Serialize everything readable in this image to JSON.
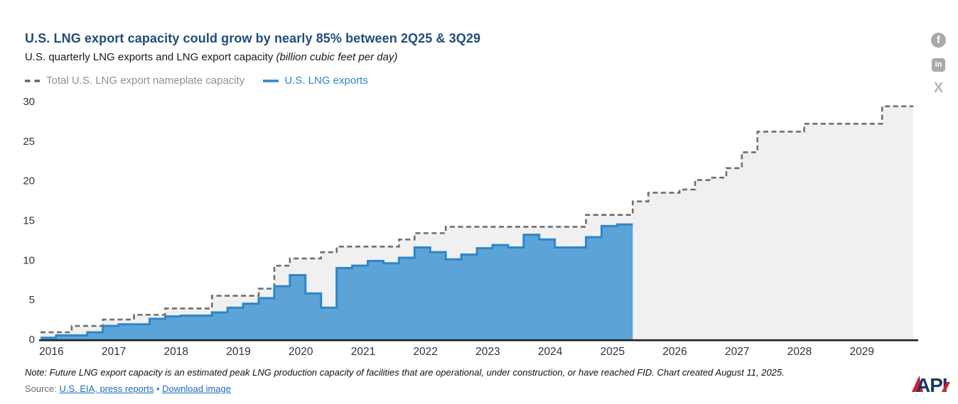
{
  "header": {
    "title": "U.S. LNG export capacity could grow by nearly 85% between 2Q25 & 3Q29",
    "subtitle_plain": "U.S. quarterly LNG exports and LNG export capacity ",
    "subtitle_italic": "(billion cubic feet per day)"
  },
  "legend": {
    "capacity_label": "Total U.S. LNG export nameplate capacity",
    "exports_label": "U.S. LNG exports"
  },
  "social": {
    "facebook": "f",
    "linkedin": "in",
    "x": "X"
  },
  "chart_data": {
    "type": "area",
    "subtype": "quarterly step areas",
    "unit": "billion cubic feet per day",
    "x_start": "2016Q1",
    "x_tick_labels": [
      "2016",
      "2017",
      "2018",
      "2019",
      "2020",
      "2021",
      "2022",
      "2023",
      "2024",
      "2025",
      "2026",
      "2027",
      "2028",
      "2029"
    ],
    "y_ticks": [
      0,
      5,
      10,
      15,
      20,
      25,
      30
    ],
    "ylim": [
      0,
      30
    ],
    "grid": "off",
    "legend_position": "top-left",
    "series": [
      {
        "name": "Total U.S. LNG export nameplate capacity",
        "style": "dashed-step-area",
        "line_color": "#6f6f6f",
        "fill_color": "#f0f0f0",
        "start": "2016Q1",
        "end": "2029Q4",
        "values": [
          0.9,
          0.9,
          1.7,
          1.7,
          2.5,
          2.5,
          3.1,
          3.1,
          3.9,
          3.9,
          3.9,
          5.5,
          5.5,
          5.5,
          6.4,
          9.3,
          10.2,
          10.2,
          11.0,
          11.7,
          11.7,
          11.7,
          11.7,
          12.6,
          13.4,
          13.4,
          14.2,
          14.2,
          14.2,
          14.2,
          14.2,
          14.2,
          14.2,
          14.2,
          14.2,
          15.7,
          15.7,
          15.7,
          17.4,
          18.5,
          18.5,
          18.9,
          20.1,
          20.4,
          21.6,
          23.6,
          26.2,
          26.2,
          26.2,
          27.2,
          27.2,
          27.2,
          27.2,
          27.2,
          29.4,
          29.4
        ]
      },
      {
        "name": "U.S. LNG exports",
        "style": "solid-step-area",
        "line_color": "#2e86c9",
        "fill_color": "#5ca3d8",
        "start": "2016Q1",
        "end": "2025Q2",
        "values": [
          0.2,
          0.5,
          0.5,
          0.9,
          1.7,
          1.9,
          1.9,
          2.6,
          2.9,
          3.0,
          3.0,
          3.4,
          4.0,
          4.5,
          5.2,
          6.7,
          8.1,
          5.8,
          4.0,
          9.0,
          9.3,
          9.9,
          9.6,
          10.3,
          11.6,
          11.0,
          10.1,
          10.7,
          11.5,
          11.9,
          11.6,
          13.2,
          12.6,
          11.6,
          11.6,
          12.9,
          14.3,
          14.5
        ]
      }
    ]
  },
  "footer": {
    "note": "Note: Future LNG export capacity is an estimated peak LNG production capacity of facilities that are operational, under construction, or have reached FID. Chart created August 11, 2025.",
    "source_prefix": "Source: ",
    "source_link": "U.S. EIA, press reports",
    "separator": " • ",
    "download_link": "Download image"
  },
  "logo": {
    "text": "API"
  }
}
